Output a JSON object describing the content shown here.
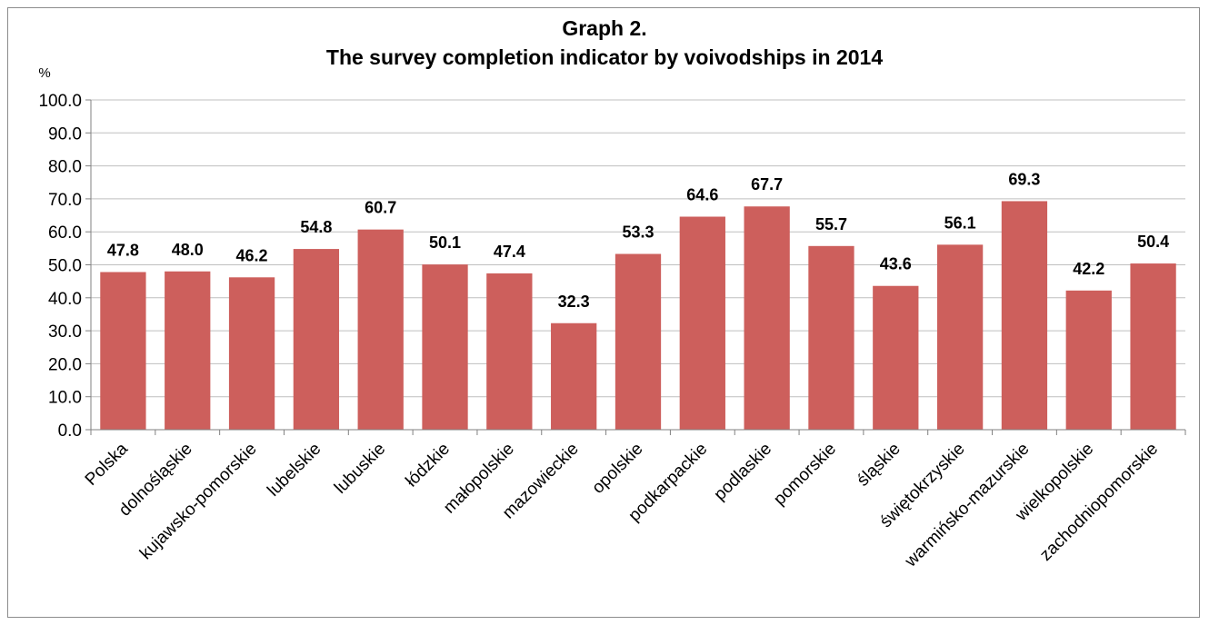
{
  "chart_data": {
    "type": "bar",
    "title_line1": "Graph 2.",
    "title_line2": "The survey completion indicator by voivodships in 2014",
    "ylabel": "%",
    "xlabel": "",
    "ylim": [
      0,
      100
    ],
    "ytick_step": 10,
    "ytick_labels": [
      "0.0",
      "10.0",
      "20.0",
      "30.0",
      "40.0",
      "50.0",
      "60.0",
      "70.0",
      "80.0",
      "90.0",
      "100.0"
    ],
    "grid": true,
    "bar_color": "#cd5f5c",
    "categories": [
      "Polska",
      "dolnośląskie",
      "kujawsko-pomorskie",
      "lubelskie",
      "lubuskie",
      "łódzkie",
      "małopolskie",
      "mazowieckie",
      "opolskie",
      "podkarpackie",
      "podlaskie",
      "pomorskie",
      "śląskie",
      "świętokrzyskie",
      "warmińsko-mazurskie",
      "wielkopolskie",
      "zachodniopomorskie"
    ],
    "values": [
      47.8,
      48.0,
      46.2,
      54.8,
      60.7,
      50.1,
      47.4,
      32.3,
      53.3,
      64.6,
      67.7,
      55.7,
      43.6,
      56.1,
      69.3,
      42.2,
      50.4
    ],
    "value_labels": [
      "47.8",
      "48.0",
      "46.2",
      "54.8",
      "60.7",
      "50.1",
      "47.4",
      "32.3",
      "53.3",
      "64.6",
      "67.7",
      "55.7",
      "43.6",
      "56.1",
      "69.3",
      "42.2",
      "50.4"
    ]
  }
}
